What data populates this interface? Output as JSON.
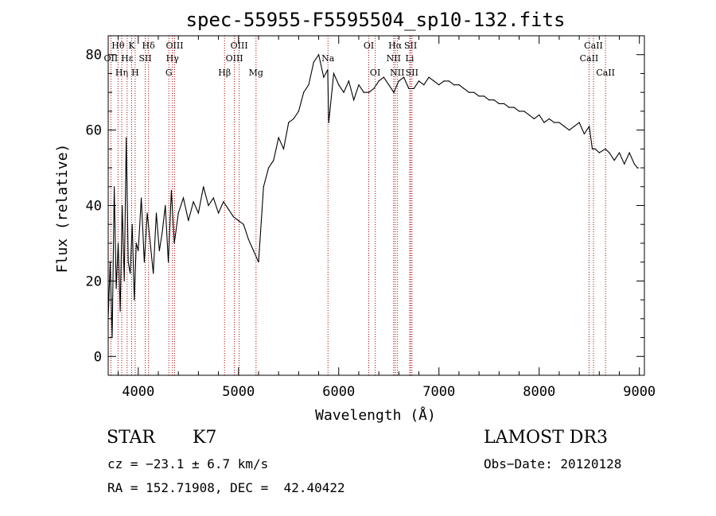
{
  "chart_data": {
    "type": "line",
    "title": "spec-55955-F5595504_sp10-132.fits",
    "xlabel": "Wavelength (Å)",
    "ylabel": "Flux (relative)",
    "xlim": [
      3700,
      9050
    ],
    "ylim": [
      -5,
      85
    ],
    "xticks": [
      4000,
      5000,
      6000,
      7000,
      8000,
      9000
    ],
    "yticks": [
      0,
      20,
      40,
      60,
      80
    ],
    "grid": false,
    "series": [
      {
        "x": [
          3700,
          3720,
          3740,
          3760,
          3780,
          3800,
          3820,
          3840,
          3860,
          3880,
          3900,
          3920,
          3940,
          3960,
          3980,
          4000,
          4030,
          4060,
          4090,
          4120,
          4150,
          4180,
          4210,
          4240,
          4270,
          4300,
          4330,
          4360,
          4400,
          4450,
          4500,
          4550,
          4600,
          4650,
          4700,
          4750,
          4800,
          4850,
          4900,
          4950,
          5000,
          5050,
          5100,
          5150,
          5200,
          5250,
          5300,
          5350,
          5400,
          5450,
          5500,
          5550,
          5600,
          5650,
          5700,
          5750,
          5800,
          5850,
          5890,
          5900,
          5950,
          6000,
          6050,
          6100,
          6150,
          6200,
          6250,
          6300,
          6350,
          6400,
          6450,
          6500,
          6550,
          6600,
          6650,
          6700,
          6750,
          6800,
          6850,
          6900,
          6950,
          7000,
          7050,
          7100,
          7150,
          7200,
          7250,
          7300,
          7350,
          7400,
          7450,
          7500,
          7550,
          7600,
          7650,
          7700,
          7750,
          7800,
          7850,
          7900,
          7950,
          8000,
          8050,
          8100,
          8150,
          8200,
          8250,
          8300,
          8350,
          8400,
          8450,
          8500,
          8530,
          8560,
          8600,
          8660,
          8700,
          8750,
          8800,
          8850,
          8900,
          8950,
          8980,
          8990
        ],
        "y": [
          10,
          25,
          5,
          45,
          18,
          30,
          12,
          40,
          20,
          58,
          25,
          22,
          35,
          15,
          30,
          28,
          42,
          25,
          38,
          30,
          22,
          38,
          28,
          33,
          40,
          25,
          44,
          30,
          38,
          42,
          36,
          41,
          38,
          45,
          40,
          42,
          38,
          41,
          39,
          37,
          36,
          35,
          31,
          28,
          25,
          45,
          50,
          52,
          58,
          55,
          62,
          63,
          65,
          70,
          72,
          78,
          80,
          74,
          76,
          62,
          75,
          72,
          70,
          73,
          68,
          72,
          70,
          70,
          71,
          73,
          74,
          72,
          70,
          73,
          74,
          71,
          71,
          73,
          72,
          74,
          73,
          72,
          73,
          73,
          72,
          72,
          71,
          70,
          70,
          69,
          69,
          68,
          68,
          67,
          67,
          66,
          66,
          65,
          65,
          64,
          63,
          64,
          62,
          63,
          62,
          62,
          61,
          60,
          61,
          62,
          59,
          61,
          55,
          55,
          54,
          55,
          54,
          52,
          54,
          51,
          54,
          51,
          50,
          50
        ]
      }
    ],
    "lines": [
      {
        "label": "Hθ",
        "x": 3798,
        "row": 1
      },
      {
        "label": "OII",
        "x": 3727,
        "row": 2
      },
      {
        "label": "Hη",
        "x": 3835,
        "row": 3
      },
      {
        "label": "Hε",
        "x": 3889,
        "row": 2
      },
      {
        "label": "K",
        "x": 3934,
        "row": 1
      },
      {
        "label": "H",
        "x": 3969,
        "row": 3
      },
      {
        "label": "SII",
        "x": 4070,
        "row": 2
      },
      {
        "label": "Hδ",
        "x": 4102,
        "row": 1
      },
      {
        "label": "OIII",
        "x": 4363,
        "row": 1
      },
      {
        "label": "Hγ",
        "x": 4341,
        "row": 2
      },
      {
        "label": "G",
        "x": 4305,
        "row": 3
      },
      {
        "label": "Hβ",
        "x": 4861,
        "row": 3
      },
      {
        "label": "OIII",
        "x": 5007,
        "row": 1
      },
      {
        "label": "OIII",
        "x": 4959,
        "row": 2
      },
      {
        "label": "Mg",
        "x": 5175,
        "row": 3
      },
      {
        "label": "Na",
        "x": 5893,
        "row": 2
      },
      {
        "label": "OI",
        "x": 6300,
        "row": 1
      },
      {
        "label": "OI",
        "x": 6364,
        "row": 3
      },
      {
        "label": "Hα",
        "x": 6563,
        "row": 1
      },
      {
        "label": "NII",
        "x": 6548,
        "row": 2
      },
      {
        "label": "NII",
        "x": 6584,
        "row": 3
      },
      {
        "label": "SII",
        "x": 6717,
        "row": 1
      },
      {
        "label": "Li",
        "x": 6708,
        "row": 2
      },
      {
        "label": "SII",
        "x": 6731,
        "row": 3
      },
      {
        "label": "CaII",
        "x": 8542,
        "row": 1
      },
      {
        "label": "CaII",
        "x": 8498,
        "row": 2
      },
      {
        "label": "CaII",
        "x": 8662,
        "row": 3
      }
    ]
  },
  "info": {
    "class": "STAR",
    "subclass": "K7",
    "cz": "cz = −23.1 ± 6.7 km/s",
    "coords": "RA = 152.71908, DEC =  42.40422",
    "survey": "LAMOST DR3",
    "obs_date": "Obs−Date: 20120128"
  }
}
